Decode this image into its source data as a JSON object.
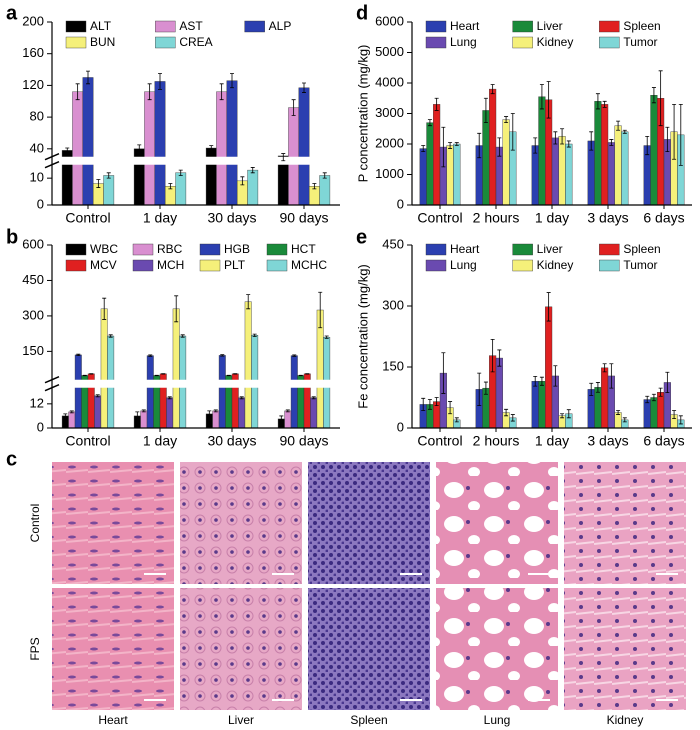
{
  "chart_data": [
    {
      "type": "bar",
      "label": "a",
      "categories": [
        "Control",
        "1 day",
        "30 days",
        "90 days"
      ],
      "ylim": [
        0,
        200
      ],
      "ybreak": [
        15,
        30
      ],
      "yticks": [
        0,
        10,
        40,
        80,
        120,
        160,
        200
      ],
      "series": [
        {
          "name": "ALT",
          "color": "#000000",
          "values": [
            38,
            40,
            41,
            31
          ],
          "errors": [
            3,
            5,
            3,
            3
          ]
        },
        {
          "name": "AST",
          "color": "#d98fd0",
          "values": [
            112,
            112,
            112,
            92
          ],
          "errors": [
            10,
            10,
            10,
            10
          ]
        },
        {
          "name": "ALP",
          "color": "#2b3fb0",
          "values": [
            130,
            125,
            126,
            117
          ],
          "errors": [
            8,
            10,
            9,
            6
          ]
        },
        {
          "name": "BUN",
          "color": "#f5f07a",
          "values": [
            8,
            7,
            9,
            7
          ],
          "errors": [
            1.5,
            1,
            1.5,
            1
          ]
        },
        {
          "name": "CREA",
          "color": "#7fd6d6",
          "values": [
            11,
            12,
            13,
            11
          ],
          "errors": [
            1,
            1,
            1,
            1
          ]
        }
      ]
    },
    {
      "type": "bar",
      "label": "b",
      "categories": [
        "Control",
        "1 day",
        "30 days",
        "90 days"
      ],
      "ylim": [
        0,
        600
      ],
      "ybreak": [
        20,
        30
      ],
      "yticks": [
        0,
        12,
        150,
        300,
        450,
        600
      ],
      "series": [
        {
          "name": "WBC",
          "color": "#000000",
          "values": [
            6,
            6,
            7,
            4.5
          ],
          "errors": [
            1,
            2,
            1.5,
            1.5
          ]
        },
        {
          "name": "RBC",
          "color": "#d98fd0",
          "values": [
            8,
            8.5,
            8.5,
            8.5
          ],
          "errors": [
            0.5,
            0.5,
            0.5,
            0.5
          ]
        },
        {
          "name": "HGB",
          "color": "#2b3fb0",
          "values": [
            135,
            132,
            133,
            132
          ],
          "errors": [
            3,
            3,
            3,
            3
          ]
        },
        {
          "name": "HCT",
          "color": "#1a8a3a",
          "values": [
            48,
            48,
            48,
            48
          ],
          "errors": [
            1,
            1,
            1,
            1
          ]
        },
        {
          "name": "MCV",
          "color": "#e02020",
          "values": [
            55,
            55,
            55,
            55
          ],
          "errors": [
            1,
            1,
            1,
            1
          ]
        },
        {
          "name": "MCH",
          "color": "#6a4ab0",
          "values": [
            16,
            15,
            15,
            15
          ],
          "errors": [
            0.5,
            0.5,
            0.5,
            0.5
          ]
        },
        {
          "name": "PLT",
          "color": "#f5f07a",
          "values": [
            330,
            330,
            360,
            325
          ],
          "errors": [
            45,
            55,
            30,
            75
          ]
        },
        {
          "name": "MCHC",
          "color": "#7fd6d6",
          "values": [
            215,
            215,
            218,
            210
          ],
          "errors": [
            5,
            5,
            5,
            5
          ]
        }
      ]
    },
    {
      "type": "bar",
      "label": "d",
      "ylabel": "P concentration (mg/kg)",
      "categories": [
        "Control",
        "2 hours",
        "1 day",
        "3 days",
        "6 days"
      ],
      "ylim": [
        0,
        6000
      ],
      "yticks": [
        0,
        1000,
        2000,
        3000,
        4000,
        5000,
        6000
      ],
      "series": [
        {
          "name": "Heart",
          "color": "#2b3fb0",
          "values": [
            1850,
            1950,
            1950,
            2100,
            1950
          ],
          "errors": [
            100,
            400,
            250,
            300,
            300
          ]
        },
        {
          "name": "Liver",
          "color": "#1a8a3a",
          "values": [
            2700,
            3100,
            3550,
            3400,
            3600
          ],
          "errors": [
            100,
            400,
            400,
            250,
            250
          ]
        },
        {
          "name": "Spleen",
          "color": "#e02020",
          "values": [
            3300,
            3800,
            3450,
            3300,
            3500
          ],
          "errors": [
            200,
            150,
            600,
            100,
            900
          ]
        },
        {
          "name": "Lung",
          "color": "#6a4ab0",
          "values": [
            1900,
            1900,
            2200,
            2050,
            2150
          ],
          "errors": [
            650,
            300,
            200,
            100,
            400
          ]
        },
        {
          "name": "Kidney",
          "color": "#f5f07a",
          "values": [
            1950,
            2800,
            2250,
            2600,
            2400
          ],
          "errors": [
            100,
            100,
            250,
            150,
            900
          ]
        },
        {
          "name": "Tumor",
          "color": "#7fd6d6",
          "values": [
            2000,
            2400,
            2000,
            2400,
            2300
          ],
          "errors": [
            50,
            600,
            100,
            50,
            1000
          ]
        }
      ]
    },
    {
      "type": "bar",
      "label": "e",
      "ylabel": "Fe concentration (mg/kg)",
      "categories": [
        "Control",
        "2 hours",
        "1 day",
        "3 days",
        "6 days"
      ],
      "ylim": [
        0,
        450
      ],
      "yticks": [
        0,
        150,
        300,
        450
      ],
      "series": [
        {
          "name": "Heart",
          "color": "#2b3fb0",
          "values": [
            58,
            95,
            115,
            95,
            70
          ],
          "errors": [
            15,
            40,
            12,
            15,
            8
          ]
        },
        {
          "name": "Liver",
          "color": "#1a8a3a",
          "values": [
            58,
            98,
            115,
            100,
            75
          ],
          "errors": [
            12,
            15,
            10,
            12,
            8
          ]
        },
        {
          "name": "Spleen",
          "color": "#e02020",
          "values": [
            65,
            178,
            298,
            148,
            88
          ],
          "errors": [
            10,
            40,
            35,
            10,
            10
          ]
        },
        {
          "name": "Lung",
          "color": "#6a4ab0",
          "values": [
            135,
            172,
            128,
            128,
            112
          ],
          "errors": [
            50,
            20,
            25,
            30,
            25
          ]
        },
        {
          "name": "Kidney",
          "color": "#f5f07a",
          "values": [
            50,
            38,
            30,
            38,
            33
          ],
          "errors": [
            15,
            8,
            5,
            5,
            10
          ]
        },
        {
          "name": "Tumor",
          "color": "#7fd6d6",
          "values": [
            20,
            25,
            35,
            20,
            20
          ],
          "errors": [
            5,
            8,
            10,
            5,
            10
          ]
        }
      ]
    }
  ],
  "histology": {
    "label": "c",
    "rows": [
      "Control",
      "FPS"
    ],
    "columns": [
      "Heart",
      "Liver",
      "Spleen",
      "Lung",
      "Kidney"
    ]
  }
}
